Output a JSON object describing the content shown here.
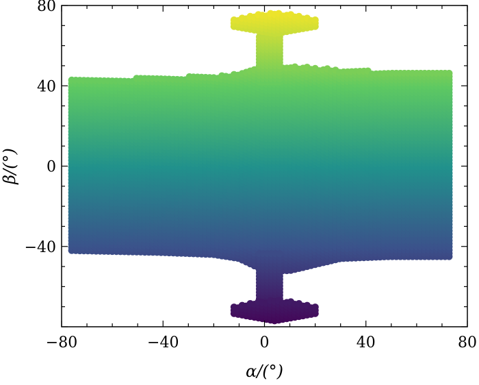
{
  "chart_data": {
    "type": "scatter",
    "title": "",
    "xlabel": "α/(°)",
    "ylabel": "β/(°)",
    "xlim": [
      -80,
      80
    ],
    "ylim": [
      -80,
      80
    ],
    "xticks": [
      -80,
      -40,
      0,
      40,
      80
    ],
    "yticks": [
      -40,
      0,
      40,
      80
    ],
    "xtick_labels": [
      "−80",
      "−40",
      "0",
      "40",
      "80"
    ],
    "ytick_labels": [
      "−40",
      "0",
      "40",
      "80"
    ],
    "minor_ticks": true,
    "grid": false,
    "legend": "none",
    "colormap": [
      "#440154",
      "#3b528b",
      "#21918c",
      "#5ec962",
      "#fde725"
    ],
    "point_spacing": 1.6,
    "regions": [
      {
        "name": "main-band",
        "x": [
          -76,
          74
        ],
        "y_lower": -42,
        "y_upper": 42
      },
      {
        "name": "top-neck",
        "x": [
          -2,
          7
        ],
        "y": [
          42,
          66
        ]
      },
      {
        "name": "top-lobe",
        "x": [
          -12,
          20
        ],
        "y": [
          66,
          77
        ]
      },
      {
        "name": "bottom-neck",
        "x": [
          -2,
          7
        ],
        "y": [
          -66,
          -42
        ]
      },
      {
        "name": "bottom-lobe",
        "x": [
          -12,
          20
        ],
        "y": [
          -77,
          -66
        ]
      }
    ],
    "upper_edge": [
      [
        -76,
        43
      ],
      [
        -40,
        44
      ],
      [
        -20,
        45
      ],
      [
        -10,
        46
      ],
      [
        0,
        50
      ],
      [
        10,
        50
      ],
      [
        30,
        48
      ],
      [
        50,
        47
      ],
      [
        74,
        47
      ]
    ],
    "lower_edge": [
      [
        -76,
        -42
      ],
      [
        -40,
        -43
      ],
      [
        -20,
        -44
      ],
      [
        -10,
        -46
      ],
      [
        0,
        -52
      ],
      [
        10,
        -52
      ],
      [
        30,
        -46
      ],
      [
        50,
        -45
      ],
      [
        74,
        -45
      ]
    ]
  }
}
